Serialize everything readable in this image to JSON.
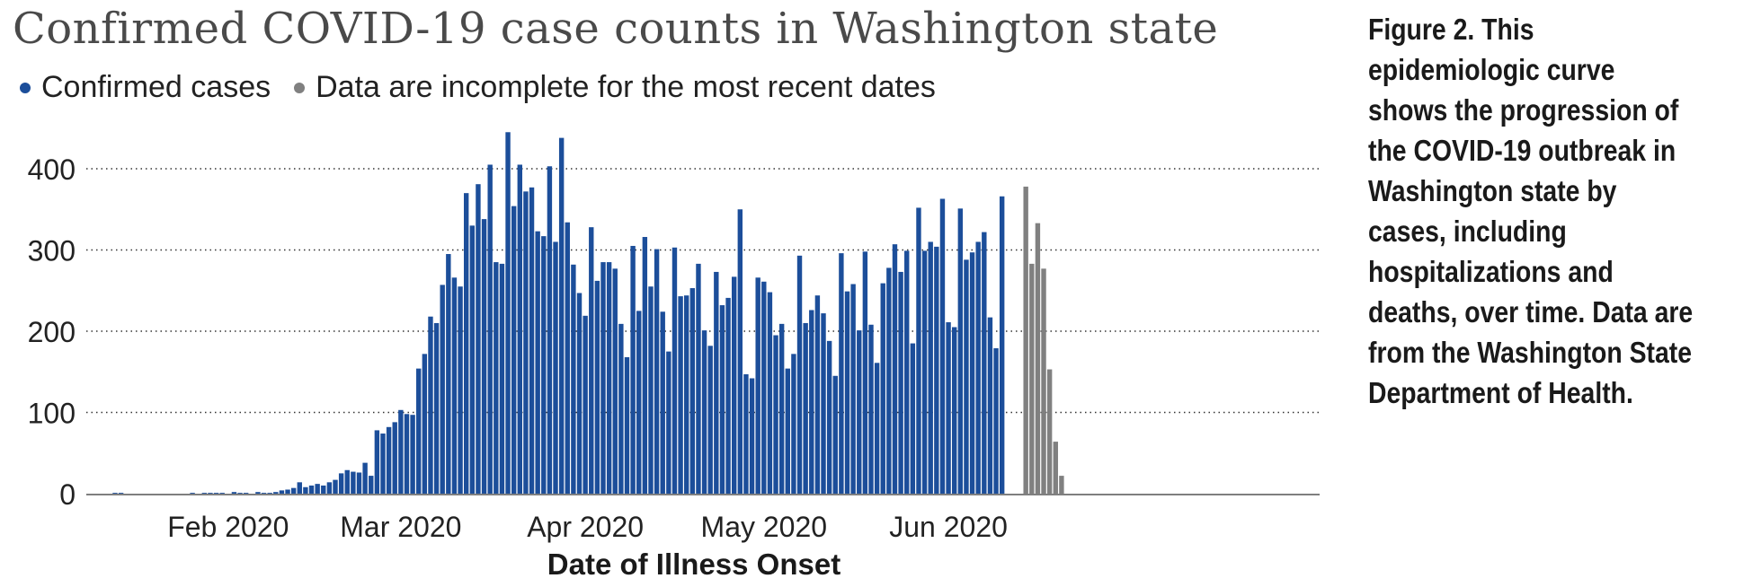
{
  "chart_data": {
    "type": "bar",
    "title": "Confirmed COVID-19 case counts in Washington state",
    "xlabel": "Date of Illness Onset",
    "ylabel": "",
    "ylim": [
      0,
      450
    ],
    "yticks": [
      0,
      100,
      200,
      300,
      400
    ],
    "grid": "horizontal dotted",
    "legend_position": "top-left",
    "x_tick_labels": [
      {
        "label": "Feb 2020",
        "index": 19
      },
      {
        "label": "Mar 2020",
        "index": 48
      },
      {
        "label": "Apr 2020",
        "index": 79
      },
      {
        "label": "May 2020",
        "index": 109
      },
      {
        "label": "Jun 2020",
        "index": 140
      }
    ],
    "series": [
      {
        "name": "Confirmed cases",
        "color": "#1c4e9a",
        "start_index": 0,
        "values": [
          1,
          1,
          0,
          0,
          0,
          0,
          0,
          0,
          0,
          0,
          0,
          0,
          0,
          1,
          0,
          1,
          1,
          1,
          1,
          0,
          2,
          1,
          1,
          0,
          2,
          1,
          1,
          2,
          4,
          5,
          7,
          14,
          8,
          10,
          12,
          10,
          14,
          17,
          25,
          29,
          27,
          26,
          38,
          22,
          78,
          74,
          82,
          88,
          103,
          98,
          97,
          154,
          172,
          218,
          210,
          257,
          295,
          266,
          255,
          370,
          330,
          381,
          338,
          405,
          285,
          283,
          445,
          354,
          405,
          372,
          377,
          323,
          317,
          403,
          310,
          438,
          334,
          282,
          247,
          219,
          328,
          262,
          285,
          285,
          277,
          209,
          168,
          305,
          225,
          316,
          255,
          301,
          224,
          175,
          303,
          243,
          244,
          253,
          283,
          201,
          182,
          273,
          232,
          241,
          267,
          350,
          147,
          142,
          266,
          261,
          248,
          195,
          209,
          154,
          172,
          293,
          210,
          226,
          244,
          222,
          188,
          145,
          296,
          249,
          258,
          201,
          298,
          208,
          161,
          259,
          278,
          307,
          273,
          299,
          185,
          352,
          299,
          310,
          304,
          363,
          211,
          205,
          351,
          288,
          297,
          310,
          322,
          217,
          179,
          366
        ]
      },
      {
        "name": "Data are incomplete for the most recent dates",
        "color": "#808080",
        "start_index": 153,
        "values": [
          378,
          283,
          333,
          277,
          153,
          64,
          22
        ]
      }
    ]
  },
  "caption": {
    "text": "Figure 2. This epidemiologic curve shows the progression of the COVID-19 outbreak in Washington state by cases, including hospitalizations and deaths, over time. Data are from the Washington State Department of Health."
  }
}
